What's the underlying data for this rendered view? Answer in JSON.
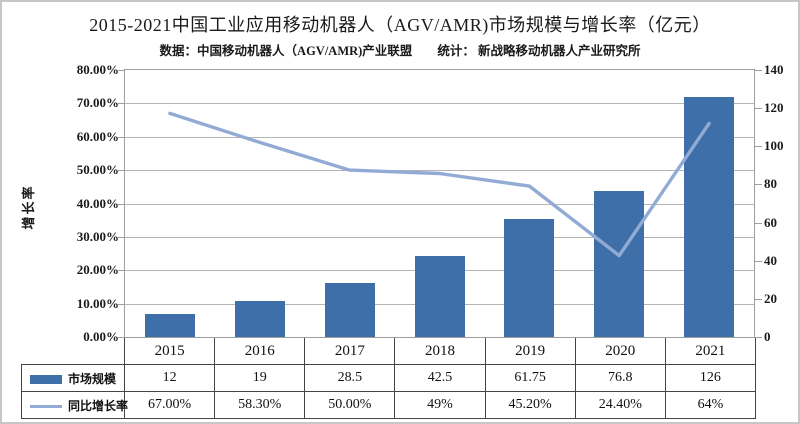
{
  "title": "2015-2021中国工业应用移动机器人（AGV/AMR)市场规模与增长率（亿元）",
  "subtitle": "数据：中国移动机器人（AGV/AMR)产业联盟　　统计： 新战略移动机器人产业研究所",
  "chart_data": {
    "type": "bar+line",
    "title": "2015-2021中国工业应用移动机器人（AGV/AMR)市场规模与增长率（亿元）",
    "source_note": "数据：中国移动机器人（AGV/AMR)产业联盟　　统计： 新战略移动机器人产业研究所",
    "categories": [
      "2015",
      "2016",
      "2017",
      "2018",
      "2019",
      "2020",
      "2021"
    ],
    "series": [
      {
        "name": "市场规模",
        "type": "bar",
        "axis": "right",
        "unit": "亿元",
        "values": [
          12,
          19,
          28.5,
          42.5,
          61.75,
          76.8,
          126
        ],
        "value_labels": [
          "12",
          "19",
          "28.5",
          "42.5",
          "61.75",
          "76.8",
          "126"
        ]
      },
      {
        "name": "同比增长率",
        "type": "line",
        "axis": "left",
        "values_pct": [
          67,
          58.3,
          50,
          49,
          45.2,
          24.4,
          64
        ],
        "value_labels": [
          "67.00%",
          "58.30%",
          "50.00%",
          "49%",
          "45.20%",
          "24.40%",
          "64%"
        ]
      }
    ],
    "left_axis": {
      "title": "增长率",
      "min": 0,
      "max": 80,
      "step": 10,
      "tick_labels": [
        "0.00%",
        "10.00%",
        "20.00%",
        "30.00%",
        "40.00%",
        "50.00%",
        "60.00%",
        "70.00%",
        "80.00%"
      ]
    },
    "right_axis": {
      "min": 0,
      "max": 140,
      "step": 20,
      "tick_labels": [
        "0",
        "20",
        "40",
        "60",
        "80",
        "100",
        "120",
        "140"
      ]
    },
    "grid": true,
    "legend_position": "table-left-column"
  },
  "colors": {
    "bar": "#3f6fa8",
    "line": "#92abd5",
    "grid": "#b5b5b5",
    "plot_border": "#9e9e9e",
    "table_border": "#444444",
    "outer_border": "#c6c6c6",
    "text": "#1a1a1a"
  }
}
